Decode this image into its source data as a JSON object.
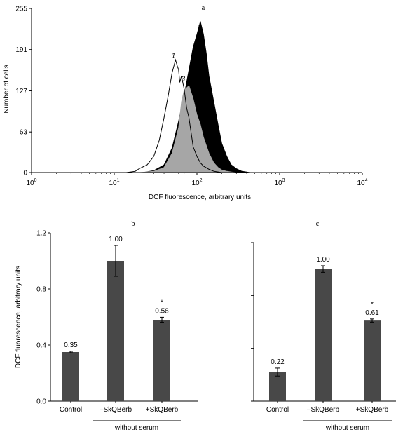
{
  "chart_data": [
    {
      "panel": "a",
      "type": "area",
      "xscale": "log",
      "xlim": [
        1,
        10000
      ],
      "ylim": [
        0,
        255
      ],
      "yticks": [
        0,
        63,
        127,
        191,
        255
      ],
      "xticks": [
        {
          "base": "10",
          "exp": "0",
          "value": 1
        },
        {
          "base": "10",
          "exp": "1",
          "value": 10
        },
        {
          "base": "10",
          "exp": "2",
          "value": 100
        },
        {
          "base": "10",
          "exp": "3",
          "value": 1000
        },
        {
          "base": "10",
          "exp": "4",
          "value": 10000
        }
      ],
      "xlabel": "DCF fluorescence, arbitrary units",
      "ylabel": "Number of cells",
      "series": [
        {
          "name": "2",
          "fill": "#000000",
          "x": [
            22,
            30,
            40,
            50,
            60,
            70,
            80,
            90,
            100,
            110,
            120,
            130,
            140,
            160,
            180,
            200,
            230,
            260,
            300,
            350,
            400,
            440
          ],
          "y": [
            0,
            3,
            12,
            38,
            80,
            120,
            160,
            195,
            215,
            235,
            215,
            185,
            150,
            110,
            75,
            45,
            25,
            12,
            6,
            2,
            1,
            0
          ]
        },
        {
          "name": "3",
          "fill": "#a6a6a6",
          "x": [
            20,
            30,
            40,
            50,
            60,
            65,
            70,
            80,
            90,
            100,
            110,
            120,
            140,
            160,
            180,
            200,
            230,
            260,
            300
          ],
          "y": [
            0,
            2,
            8,
            30,
            70,
            110,
            128,
            135,
            115,
            90,
            75,
            55,
            30,
            15,
            8,
            4,
            2,
            1,
            0
          ]
        },
        {
          "name": "1",
          "fill": "none",
          "x": [
            14,
            18,
            20,
            25,
            30,
            35,
            40,
            45,
            50,
            55,
            58,
            60,
            62,
            65,
            70,
            75,
            80,
            90,
            100,
            110,
            120,
            140,
            160,
            180,
            200
          ],
          "y": [
            0,
            2,
            6,
            12,
            25,
            50,
            85,
            120,
            155,
            175,
            165,
            160,
            140,
            150,
            130,
            100,
            85,
            40,
            25,
            15,
            10,
            5,
            2,
            1,
            0
          ]
        }
      ],
      "curve_labels": [
        {
          "text": "1",
          "x": 52,
          "y": 178
        },
        {
          "text": "2",
          "x": 108,
          "y": 222
        },
        {
          "text": "3",
          "x": 68,
          "y": 142
        }
      ],
      "title": "a"
    },
    {
      "panel": "b",
      "type": "bar",
      "title": "b",
      "ylabel": "DCF fluorescence, arbitrary units",
      "ylim": [
        0,
        1.2
      ],
      "yticks": [
        "0.0",
        "0.4",
        "0.8",
        "1.2"
      ],
      "categories": [
        "Control",
        "–SkQBerb",
        "+SkQBerb"
      ],
      "values": [
        0.35,
        1.0,
        0.58
      ],
      "errors": [
        0.005,
        0.11,
        0.018
      ],
      "value_labels": [
        "0.35",
        "1.00",
        "0.58"
      ],
      "significance": [
        "",
        "",
        "*"
      ],
      "group_label": "without serum",
      "bar_color": "#484848"
    },
    {
      "panel": "c",
      "type": "bar",
      "title": "c",
      "ylim": [
        0,
        1.2
      ],
      "yticks": [
        "",
        "",
        "",
        ""
      ],
      "categories": [
        "Control",
        "–SkQBerb",
        "+SkQBerb"
      ],
      "values": [
        0.22,
        1.0,
        0.61
      ],
      "errors": [
        0.03,
        0.025,
        0.012
      ],
      "value_labels": [
        "0.22",
        "1.00",
        "0.61"
      ],
      "significance": [
        "",
        "",
        "*"
      ],
      "group_label": "without serum",
      "bar_color": "#484848"
    }
  ]
}
